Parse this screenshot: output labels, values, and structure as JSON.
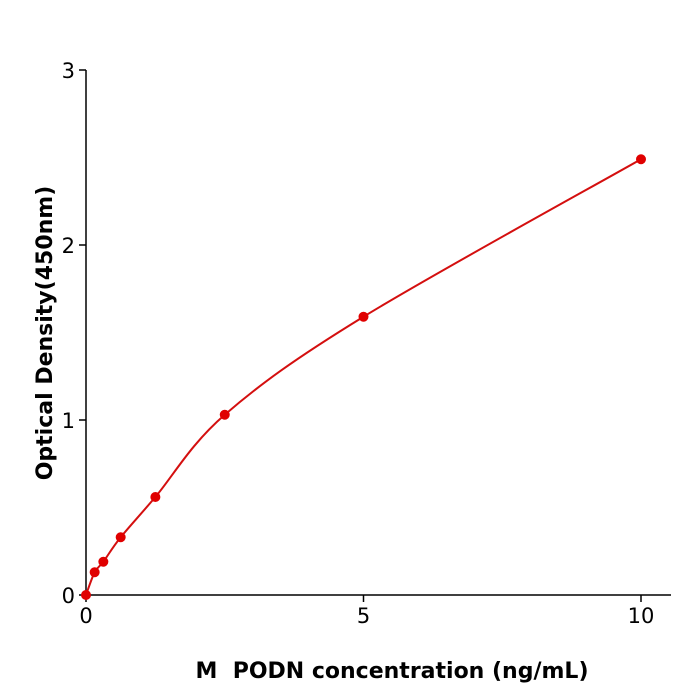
{
  "chart_data": {
    "type": "scatter",
    "title": "",
    "xlabel": "M  PODN concentration (ng/mL)",
    "ylabel": "Optical Density(450nm)",
    "xlim": [
      0,
      10.5
    ],
    "ylim": [
      0,
      3
    ],
    "xticks": [
      0,
      5,
      10
    ],
    "yticks": [
      0,
      1,
      2,
      3
    ],
    "xtick_labels": [
      "0",
      "5",
      "10"
    ],
    "ytick_labels": [
      "0",
      "1",
      "2",
      "3"
    ],
    "grid": false,
    "color": "#e00000",
    "line_color": "#d40f0f",
    "series": [
      {
        "x": [
          0,
          0.156,
          0.3125,
          0.625,
          1.25,
          2.5,
          5,
          10
        ],
        "y": [
          0,
          0.13,
          0.19,
          0.33,
          0.56,
          1.03,
          1.59,
          2.49
        ]
      }
    ]
  }
}
